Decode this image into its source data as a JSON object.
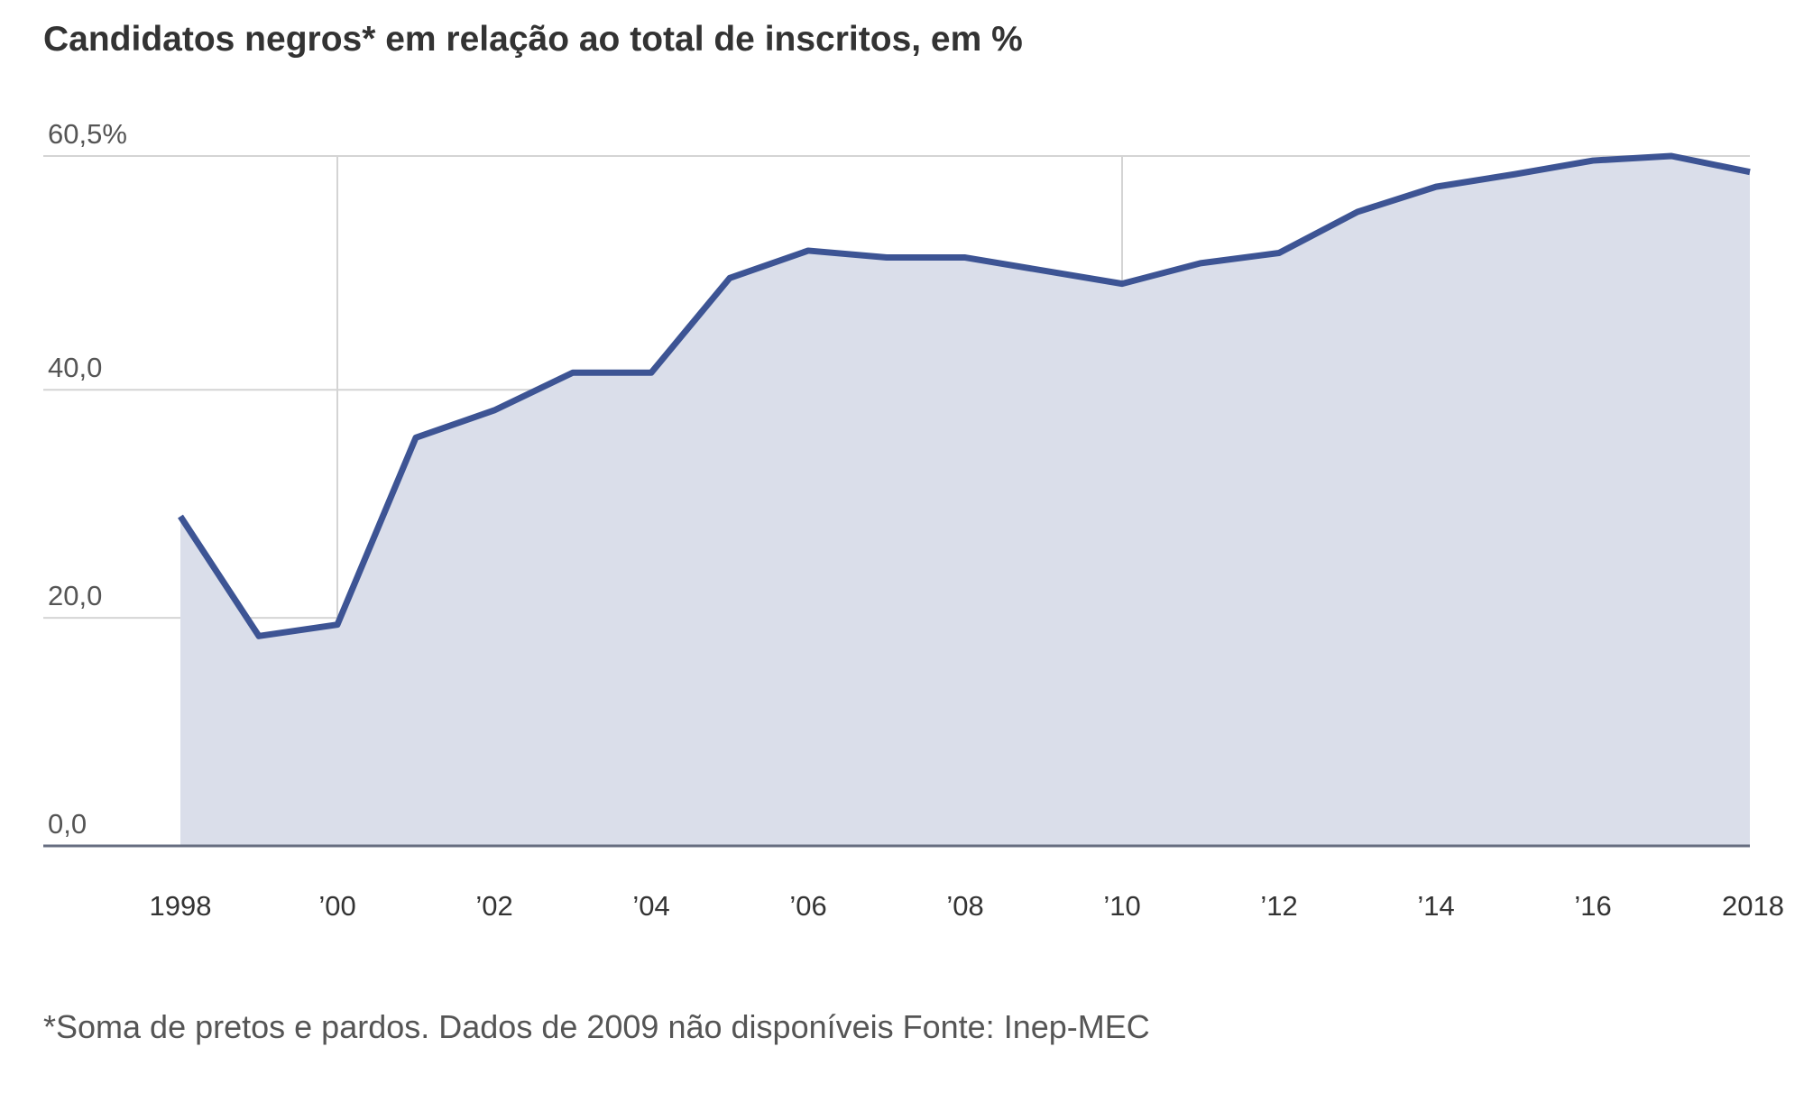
{
  "chart_data": {
    "type": "area",
    "title": "Candidatos negros* em relação ao total de inscritos, em %",
    "xlabel": "",
    "ylabel": "",
    "x": [
      1998,
      1999,
      2000,
      2001,
      2002,
      2003,
      2004,
      2005,
      2006,
      2007,
      2008,
      2010,
      2011,
      2012,
      2013,
      2014,
      2015,
      2016,
      2017,
      2018
    ],
    "series": [
      {
        "values": [
          28.9,
          18.4,
          19.4,
          35.8,
          38.2,
          41.5,
          41.5,
          49.8,
          52.2,
          51.6,
          51.6,
          49.3,
          51.1,
          52.0,
          55.6,
          57.8,
          58.9,
          60.1,
          60.5,
          59.1
        ]
      }
    ],
    "xlim": [
      1998,
      2018
    ],
    "ylim": [
      0,
      60.5
    ],
    "xticks": [
      {
        "value": 1998,
        "label": "1998"
      },
      {
        "value": 2000,
        "label": "’00"
      },
      {
        "value": 2002,
        "label": "’02"
      },
      {
        "value": 2004,
        "label": "’04"
      },
      {
        "value": 2006,
        "label": "’06"
      },
      {
        "value": 2008,
        "label": "’08"
      },
      {
        "value": 2010,
        "label": "’10"
      },
      {
        "value": 2012,
        "label": "’12"
      },
      {
        "value": 2014,
        "label": "’14"
      },
      {
        "value": 2016,
        "label": "’16"
      },
      {
        "value": 2018,
        "label": "2018"
      }
    ],
    "yticks": [
      {
        "value": 0,
        "label": "0,0"
      },
      {
        "value": 20,
        "label": "20,0"
      },
      {
        "value": 40,
        "label": "40,0"
      },
      {
        "value": 60.5,
        "label": "60,5%"
      }
    ],
    "vertical_gridlines_at": [
      2000,
      2010
    ],
    "grid": true,
    "line_color": "#3d5494",
    "fill_color": "#dadeea",
    "grid_color": "#d4d4d4",
    "axis_color": "#666d80",
    "footnote": "*Soma de pretos e pardos. Dados de 2009 não disponíveis Fonte: Inep-MEC"
  }
}
